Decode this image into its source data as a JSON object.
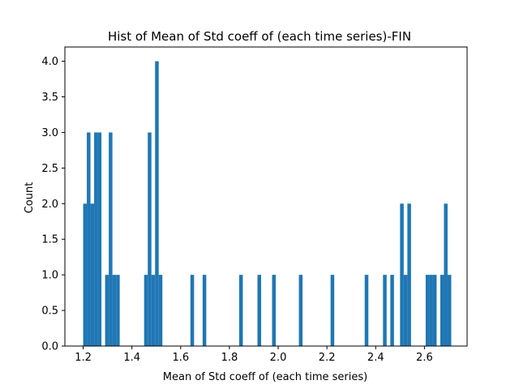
{
  "chart_data": {
    "type": "bar",
    "title": "Hist of Mean of Std coeff of (each time series)-FIN",
    "xlabel": "Mean of Std coeff of (each time series)",
    "ylabel": "Count",
    "xlim": [
      1.125,
      2.775
    ],
    "ylim": [
      0,
      4.2
    ],
    "xticks": [
      1.2,
      1.4,
      1.6,
      1.8,
      2.0,
      2.2,
      2.4,
      2.6
    ],
    "xtick_labels": [
      "1.2",
      "1.4",
      "1.6",
      "1.8",
      "2.0",
      "2.2",
      "2.4",
      "2.6"
    ],
    "yticks": [
      0.0,
      0.5,
      1.0,
      1.5,
      2.0,
      2.5,
      3.0,
      3.5,
      4.0
    ],
    "ytick_labels": [
      "0.0",
      "0.5",
      "1.0",
      "1.5",
      "2.0",
      "2.5",
      "3.0",
      "3.5",
      "4.0"
    ],
    "bin_width": 0.015,
    "bar_color": "#1f77b4",
    "grid": false,
    "bins": [
      {
        "start": 1.2,
        "count": 2
      },
      {
        "start": 1.215,
        "count": 3
      },
      {
        "start": 1.23,
        "count": 2
      },
      {
        "start": 1.245,
        "count": 3
      },
      {
        "start": 1.26,
        "count": 3
      },
      {
        "start": 1.29,
        "count": 1
      },
      {
        "start": 1.305,
        "count": 3
      },
      {
        "start": 1.32,
        "count": 1
      },
      {
        "start": 1.335,
        "count": 1
      },
      {
        "start": 1.45,
        "count": 1
      },
      {
        "start": 1.465,
        "count": 3
      },
      {
        "start": 1.48,
        "count": 1
      },
      {
        "start": 1.495,
        "count": 4
      },
      {
        "start": 1.51,
        "count": 1
      },
      {
        "start": 1.64,
        "count": 1
      },
      {
        "start": 1.69,
        "count": 1
      },
      {
        "start": 1.84,
        "count": 1
      },
      {
        "start": 1.915,
        "count": 1
      },
      {
        "start": 1.975,
        "count": 1
      },
      {
        "start": 2.085,
        "count": 1
      },
      {
        "start": 2.215,
        "count": 1
      },
      {
        "start": 2.355,
        "count": 1
      },
      {
        "start": 2.43,
        "count": 1
      },
      {
        "start": 2.46,
        "count": 1
      },
      {
        "start": 2.5,
        "count": 2
      },
      {
        "start": 2.515,
        "count": 1
      },
      {
        "start": 2.53,
        "count": 2
      },
      {
        "start": 2.605,
        "count": 1
      },
      {
        "start": 2.62,
        "count": 1
      },
      {
        "start": 2.635,
        "count": 1
      },
      {
        "start": 2.665,
        "count": 1
      },
      {
        "start": 2.68,
        "count": 2
      },
      {
        "start": 2.695,
        "count": 1
      }
    ]
  }
}
